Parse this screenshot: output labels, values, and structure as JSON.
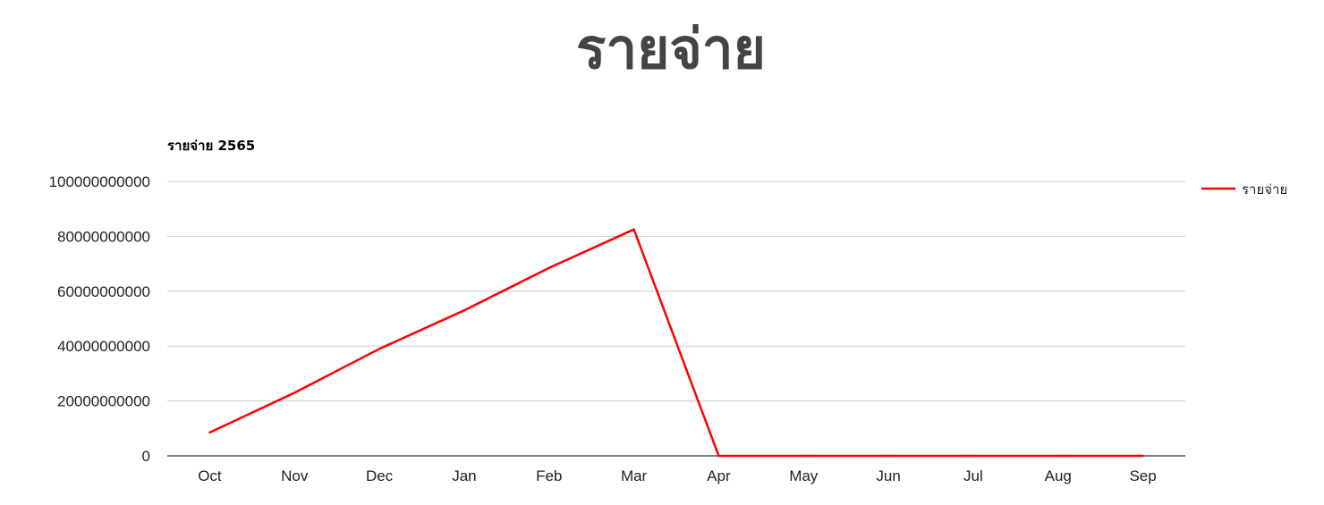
{
  "page": {
    "title": "รายจ่าย"
  },
  "chart_data": {
    "type": "line",
    "title": "รายจ่าย 2565",
    "xlabel": "",
    "ylabel": "",
    "categories": [
      "Oct",
      "Nov",
      "Dec",
      "Jan",
      "Feb",
      "Mar",
      "Apr",
      "May",
      "Jun",
      "Jul",
      "Aug",
      "Sep"
    ],
    "series": [
      {
        "name": "รายจ่าย",
        "color": "#ff0000",
        "values": [
          8500000000,
          23000000000,
          39000000000,
          53000000000,
          68500000000,
          82500000000,
          0,
          0,
          0,
          0,
          0,
          0
        ]
      }
    ],
    "ylim": [
      0,
      100000000000
    ],
    "yticks": [
      "0",
      "20000000000",
      "40000000000",
      "60000000000",
      "80000000000",
      "100000000000"
    ],
    "grid": true,
    "legend": "right"
  }
}
